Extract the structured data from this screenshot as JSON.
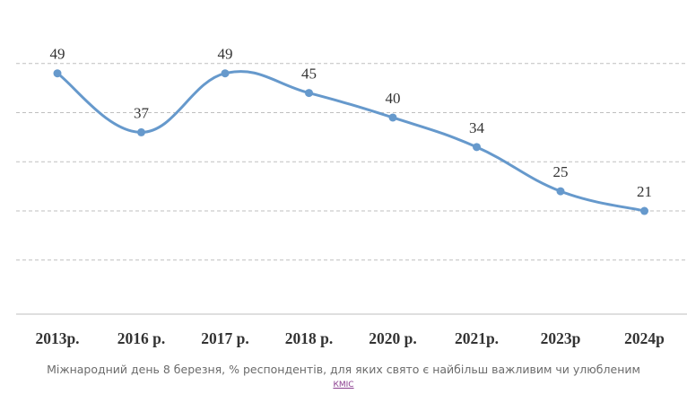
{
  "chart_data": {
    "type": "line",
    "categories": [
      "2013р.",
      "2016 р.",
      "2017 р.",
      "2018 р.",
      "2020 р.",
      "2021р.",
      "2023р",
      "2024р"
    ],
    "values": [
      49,
      37,
      49,
      45,
      40,
      34,
      25,
      21
    ],
    "data_labels": [
      "49",
      "37",
      "49",
      "45",
      "40",
      "34",
      "25",
      "21"
    ],
    "ylim": [
      0,
      61
    ],
    "gridlines": [
      11,
      21,
      31,
      41,
      51
    ],
    "grid": true,
    "line_color": "#6699cc",
    "grid_color": "#bfbfbf",
    "axis_color": "#bfbfbf",
    "label_color": "#333333"
  },
  "caption": "Міжнародний день 8 березня, % респондентів, для яких свято є найбільш важливим чи улюбленим",
  "source_link": "КМІС"
}
